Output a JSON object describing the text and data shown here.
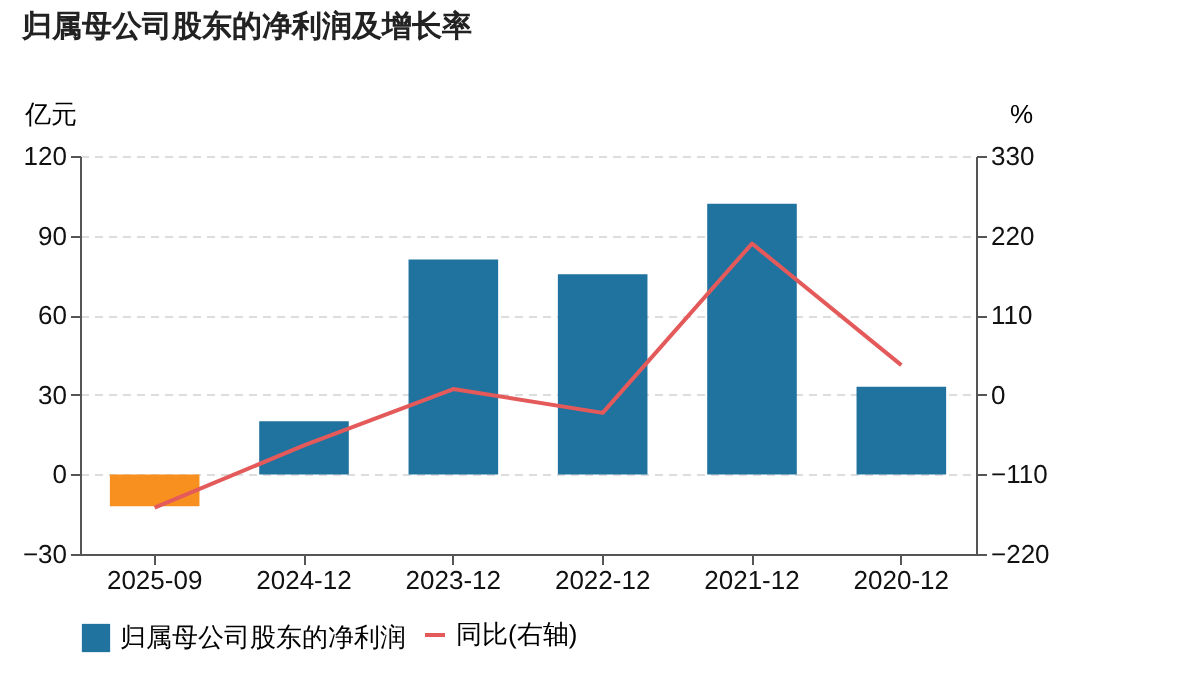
{
  "chart_data": {
    "type": "bar",
    "title": "归属母公司股东的净利润及增长率",
    "ylabel": "亿元",
    "y2label": "%",
    "categories": [
      "2025-09",
      "2024-12",
      "2023-12",
      "2022-12",
      "2021-12",
      "2020-12"
    ],
    "series": [
      {
        "name": "归属母公司股东的净利润",
        "color": "#21739f",
        "colors": [
          "#f7901e",
          "#21739f",
          "#21739f",
          "#21739f",
          "#21739f",
          "#21739f"
        ],
        "values": [
          -12,
          20,
          81,
          75.4,
          102,
          33
        ]
      },
      {
        "name": "同比(右轴)",
        "type": "line",
        "axis": "y2",
        "color": "#e45a5a",
        "values": [
          -156,
          -70,
          8,
          -25,
          209,
          41
        ]
      }
    ],
    "ylim": [
      -30,
      120
    ],
    "yticks": [
      -30,
      0,
      30,
      60,
      90,
      120
    ],
    "y2lim": [
      -220,
      330
    ],
    "y2ticks": [
      -220,
      -110,
      0,
      110,
      220,
      330
    ],
    "grid": "y",
    "legend": "bottom"
  }
}
